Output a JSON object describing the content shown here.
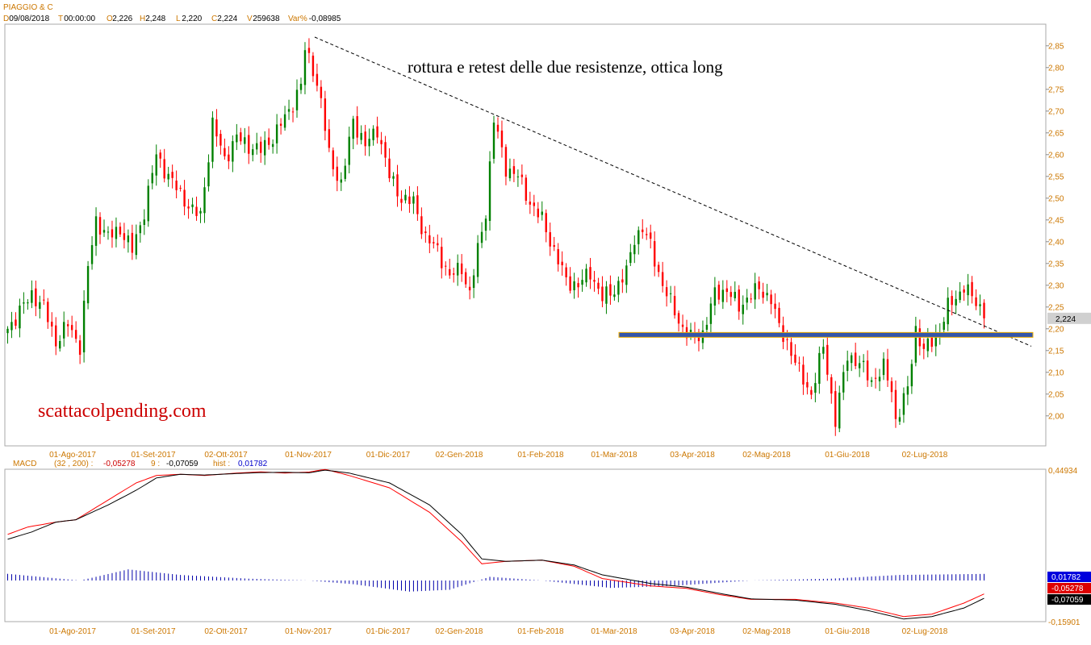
{
  "header": {
    "symbol": "PIAGGIO & C",
    "date_label": "D",
    "date": "09/08/2018",
    "time_label": "T",
    "time": "00:00:00",
    "open_label": "O",
    "open": "2,226",
    "high_label": "H",
    "high": "2,248",
    "low_label": "L",
    "low": "2,220",
    "close_label": "C",
    "close": "2,224",
    "volume_label": "V",
    "volume": "259638",
    "var_label": "Var%",
    "var": "-0,08985"
  },
  "annotation": "rottura e retest delle due resistenze, ottica long",
  "watermark": "scattacolpending.com",
  "price_tag": "2,224",
  "macd_header": {
    "name": "MACD",
    "params": "(32 , 200) :",
    "macd_value": "-0,05278",
    "signal_label": "9 :",
    "signal_value": "-0,07059",
    "hist_label": "hist :",
    "hist_value": "0,01782"
  },
  "macd_axis_labels": [
    "0,44934",
    "-0,15901"
  ],
  "macd_tags": [
    "0,01782",
    "-0,05278",
    "-0,07059"
  ],
  "colors": {
    "up": "#008000",
    "down": "#ff0000",
    "trendline": "#000000",
    "support": "#3355aa",
    "support_border": "#f0b000",
    "macd": "#ff0000",
    "signal": "#000000",
    "hist": "#0000aa",
    "axis_text": "#cc7700",
    "header_label": "#cc7700",
    "header_value": "#000000"
  },
  "chart_data": [
    {
      "type": "candlestick",
      "title": "PIAGGIO & C",
      "x_tick_labels": [
        "01-Ago-2017",
        "01-Set-2017",
        "02-Ott-2017",
        "01-Nov-2017",
        "01-Dic-2017",
        "02-Gen-2018",
        "01-Feb-2018",
        "01-Mar-2018",
        "03-Apr-2018",
        "02-Mag-2018",
        "01-Giu-2018",
        "02-Lug-2018"
      ],
      "y_tick_labels": [
        "2,00",
        "2,05",
        "2,10",
        "2,15",
        "2,20",
        "2,25",
        "2,30",
        "2,35",
        "2,40",
        "2,45",
        "2,50",
        "2,55",
        "2,60",
        "2,65",
        "2,70",
        "2,75",
        "2,80",
        "2,85"
      ],
      "ylim": [
        1.94,
        2.87
      ],
      "close_path": [
        [
          0,
          2.2
        ],
        [
          6,
          2.28
        ],
        [
          9,
          2.25
        ],
        [
          12,
          2.17
        ],
        [
          15,
          2.21
        ],
        [
          18,
          2.16
        ],
        [
          20,
          2.34
        ],
        [
          22,
          2.45
        ],
        [
          25,
          2.41
        ],
        [
          28,
          2.43
        ],
        [
          31,
          2.38
        ],
        [
          34,
          2.47
        ],
        [
          37,
          2.6
        ],
        [
          40,
          2.55
        ],
        [
          43,
          2.51
        ],
        [
          46,
          2.47
        ],
        [
          48,
          2.46
        ],
        [
          51,
          2.67
        ],
        [
          54,
          2.59
        ],
        [
          57,
          2.64
        ],
        [
          60,
          2.62
        ],
        [
          63,
          2.61
        ],
        [
          66,
          2.64
        ],
        [
          70,
          2.7
        ],
        [
          73,
          2.76
        ],
        [
          74,
          2.84
        ],
        [
          76,
          2.8
        ],
        [
          78,
          2.72
        ],
        [
          80,
          2.6
        ],
        [
          83,
          2.53
        ],
        [
          86,
          2.68
        ],
        [
          89,
          2.62
        ],
        [
          92,
          2.66
        ],
        [
          95,
          2.55
        ],
        [
          98,
          2.5
        ],
        [
          101,
          2.49
        ],
        [
          104,
          2.41
        ],
        [
          107,
          2.38
        ],
        [
          110,
          2.32
        ],
        [
          113,
          2.34
        ],
        [
          115,
          2.28
        ],
        [
          117,
          2.38
        ],
        [
          119,
          2.47
        ],
        [
          121,
          2.68
        ],
        [
          124,
          2.57
        ],
        [
          127,
          2.55
        ],
        [
          130,
          2.49
        ],
        [
          133,
          2.45
        ],
        [
          136,
          2.38
        ],
        [
          139,
          2.31
        ],
        [
          142,
          2.3
        ],
        [
          145,
          2.33
        ],
        [
          148,
          2.27
        ],
        [
          151,
          2.29
        ],
        [
          154,
          2.33
        ],
        [
          156,
          2.41
        ],
        [
          158,
          2.43
        ],
        [
          160,
          2.39
        ],
        [
          163,
          2.3
        ],
        [
          166,
          2.24
        ],
        [
          168,
          2.2
        ],
        [
          170,
          2.18
        ],
        [
          173,
          2.19
        ],
        [
          176,
          2.28
        ],
        [
          179,
          2.29
        ],
        [
          182,
          2.25
        ],
        [
          185,
          2.28
        ],
        [
          187,
          2.29
        ],
        [
          190,
          2.27
        ],
        [
          192,
          2.2
        ],
        [
          194,
          2.17
        ],
        [
          197,
          2.1
        ],
        [
          200,
          2.05
        ],
        [
          203,
          2.16
        ],
        [
          206,
          1.99
        ],
        [
          209,
          2.14
        ],
        [
          212,
          2.12
        ],
        [
          215,
          2.08
        ],
        [
          218,
          2.11
        ],
        [
          220,
          2.06
        ],
        [
          221,
          1.99
        ],
        [
          224,
          2.06
        ],
        [
          226,
          2.2
        ],
        [
          228,
          2.15
        ],
        [
          230,
          2.17
        ],
        [
          232,
          2.2
        ],
        [
          234,
          2.25
        ],
        [
          236,
          2.27
        ],
        [
          238,
          2.3
        ],
        [
          240,
          2.27
        ],
        [
          242,
          2.25
        ],
        [
          243,
          2.224
        ]
      ],
      "series": [
        {
          "name": "trendline",
          "points": [
            [
              "01-Nov-2017",
              2.87
            ],
            [
              "ultima barra",
              2.16
            ]
          ]
        },
        {
          "name": "supporto",
          "value": 2.186
        }
      ]
    },
    {
      "type": "line",
      "title": "MACD",
      "ylim": [
        -0.159,
        0.449
      ],
      "series": [
        {
          "name": "MACD",
          "values": [
            [
              0,
              0.19
            ],
            [
              5,
              0.22
            ],
            [
              12,
              0.24
            ],
            [
              17,
              0.25
            ],
            [
              25,
              0.33
            ],
            [
              32,
              0.4
            ],
            [
              37,
              0.43
            ],
            [
              43,
              0.435
            ],
            [
              49,
              0.43
            ],
            [
              57,
              0.44
            ],
            [
              63,
              0.445
            ],
            [
              69,
              0.44
            ],
            [
              75,
              0.444
            ],
            [
              79,
              0.455
            ],
            [
              85,
              0.43
            ],
            [
              95,
              0.38
            ],
            [
              105,
              0.28
            ],
            [
              113,
              0.16
            ],
            [
              118,
              0.07
            ],
            [
              124,
              0.08
            ],
            [
              133,
              0.085
            ],
            [
              141,
              0.06
            ],
            [
              148,
              0.01
            ],
            [
              160,
              -0.02
            ],
            [
              169,
              -0.03
            ],
            [
              177,
              -0.055
            ],
            [
              185,
              -0.075
            ],
            [
              196,
              -0.075
            ],
            [
              206,
              -0.09
            ],
            [
              214,
              -0.11
            ],
            [
              223,
              -0.145
            ],
            [
              230,
              -0.135
            ],
            [
              238,
              -0.09
            ],
            [
              243,
              -0.05278
            ]
          ]
        },
        {
          "name": "signal",
          "values": [
            [
              0,
              0.17
            ],
            [
              6,
              0.2
            ],
            [
              12,
              0.24
            ],
            [
              17,
              0.25
            ],
            [
              25,
              0.31
            ],
            [
              32,
              0.37
            ],
            [
              37,
              0.42
            ],
            [
              43,
              0.435
            ],
            [
              49,
              0.432
            ],
            [
              57,
              0.438
            ],
            [
              63,
              0.442
            ],
            [
              69,
              0.443
            ],
            [
              75,
              0.441
            ],
            [
              79,
              0.452
            ],
            [
              85,
              0.44
            ],
            [
              95,
              0.4
            ],
            [
              105,
              0.31
            ],
            [
              113,
              0.19
            ],
            [
              118,
              0.09
            ],
            [
              124,
              0.08
            ],
            [
              133,
              0.085
            ],
            [
              141,
              0.065
            ],
            [
              148,
              0.025
            ],
            [
              160,
              -0.01
            ],
            [
              169,
              -0.025
            ],
            [
              177,
              -0.05
            ],
            [
              185,
              -0.073
            ],
            [
              196,
              -0.078
            ],
            [
              206,
              -0.095
            ],
            [
              214,
              -0.12
            ],
            [
              223,
              -0.155
            ],
            [
              230,
              -0.145
            ],
            [
              238,
              -0.11
            ],
            [
              243,
              -0.07059
            ]
          ]
        },
        {
          "name": "hist",
          "values": [
            [
              0,
              0.018
            ],
            [
              18,
              0.0
            ],
            [
              30,
              0.03
            ],
            [
              43,
              0.015
            ],
            [
              60,
              0.005
            ],
            [
              75,
              0.0
            ],
            [
              86,
              -0.01
            ],
            [
              100,
              -0.03
            ],
            [
              110,
              -0.025
            ],
            [
              120,
              0.01
            ],
            [
              133,
              0.0
            ],
            [
              150,
              -0.02
            ],
            [
              165,
              -0.015
            ],
            [
              185,
              0.0
            ],
            [
              205,
              0.005
            ],
            [
              222,
              0.015
            ],
            [
              243,
              0.01782
            ]
          ]
        }
      ]
    }
  ]
}
